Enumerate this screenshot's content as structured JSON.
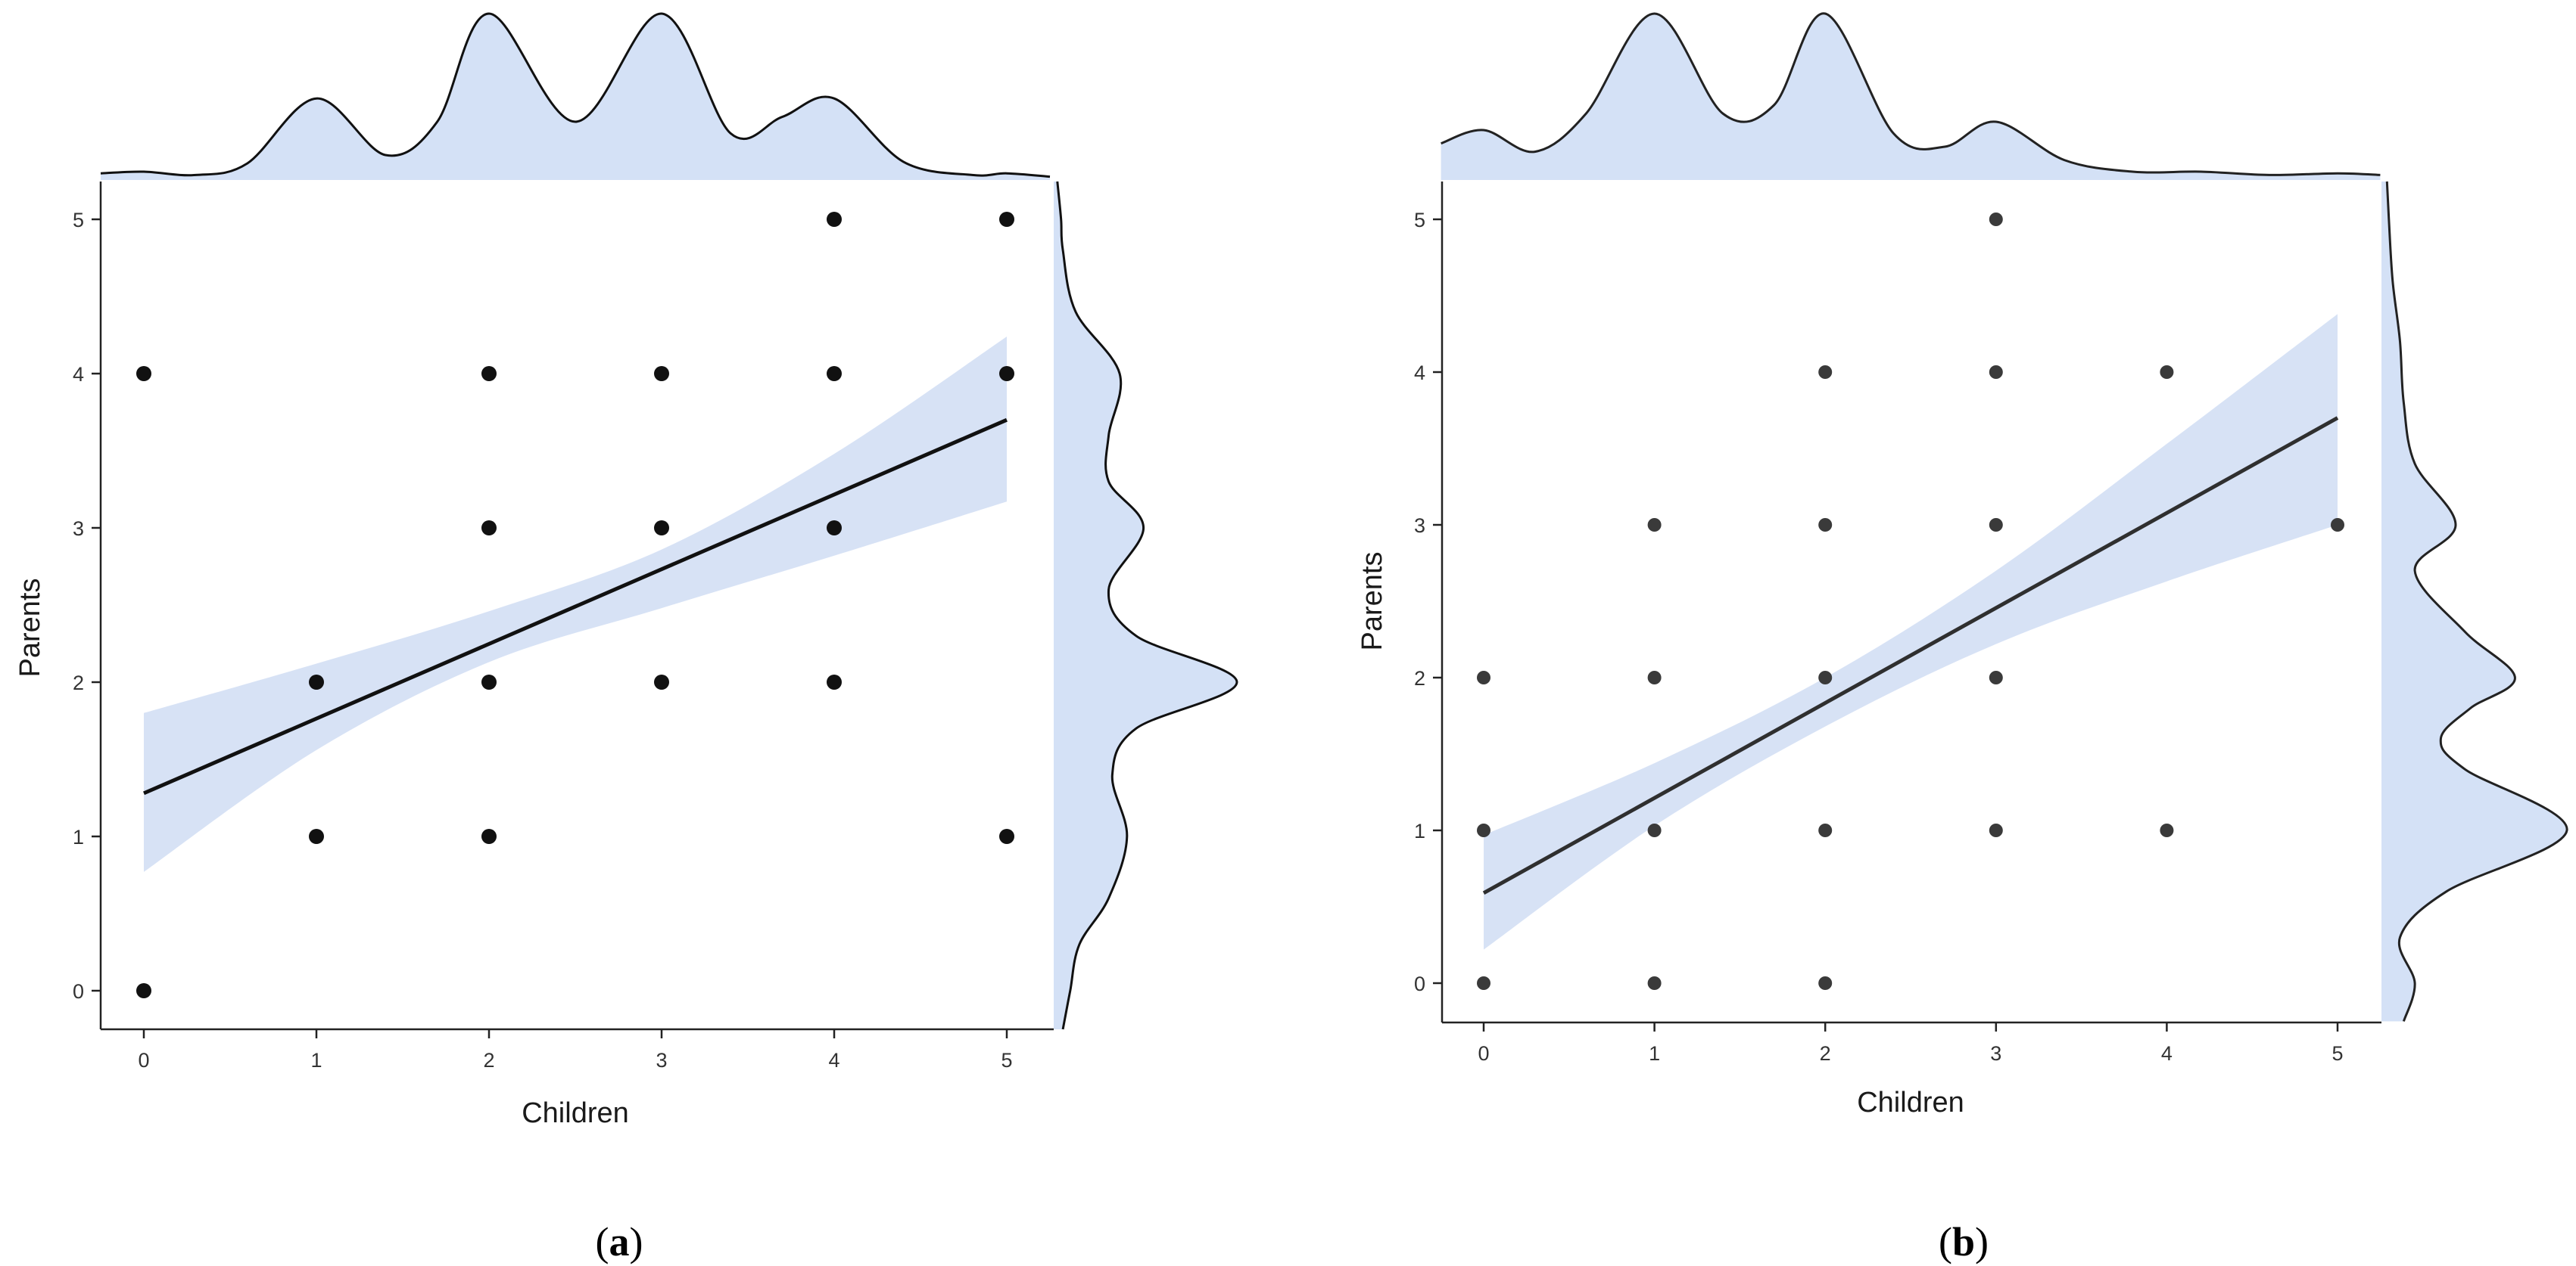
{
  "figure": {
    "panels": [
      {
        "label": "(a)",
        "label_letter": "a"
      },
      {
        "label": "(b)",
        "label_letter": "b"
      }
    ]
  },
  "chart_data": [
    {
      "type": "scatter",
      "panel": "a",
      "xlabel": "Children",
      "ylabel": "Parents",
      "xlim": [
        0,
        5
      ],
      "ylim": [
        0,
        5
      ],
      "x_ticks": [
        0,
        1,
        2,
        3,
        4,
        5
      ],
      "y_ticks": [
        0,
        1,
        2,
        3,
        4,
        5
      ],
      "grid": false,
      "point_color": "#111111",
      "points": [
        {
          "x": 0,
          "y": 0
        },
        {
          "x": 0,
          "y": 4
        },
        {
          "x": 1,
          "y": 1
        },
        {
          "x": 1,
          "y": 2
        },
        {
          "x": 2,
          "y": 1
        },
        {
          "x": 2,
          "y": 2
        },
        {
          "x": 2,
          "y": 3
        },
        {
          "x": 2,
          "y": 4
        },
        {
          "x": 3,
          "y": 2
        },
        {
          "x": 3,
          "y": 3
        },
        {
          "x": 3,
          "y": 4
        },
        {
          "x": 4,
          "y": 2
        },
        {
          "x": 4,
          "y": 3
        },
        {
          "x": 4,
          "y": 4
        },
        {
          "x": 4,
          "y": 5
        },
        {
          "x": 5,
          "y": 1
        },
        {
          "x": 5,
          "y": 4
        },
        {
          "x": 5,
          "y": 5
        }
      ],
      "regression": {
        "intercept": 1.28,
        "slope": 0.484,
        "line_color": "#111111"
      },
      "confidence_band": {
        "color": "#c9d8f2",
        "x": [
          0,
          1,
          2,
          3,
          4,
          5
        ],
        "lower": [
          0.77,
          1.56,
          2.13,
          2.48,
          2.82,
          3.17
        ],
        "upper": [
          1.8,
          2.12,
          2.46,
          2.86,
          3.48,
          4.24
        ]
      },
      "marginal_x_density": {
        "x": [
          -0.25,
          0,
          0.3,
          0.6,
          1.0,
          1.4,
          1.7,
          2.0,
          2.5,
          3.0,
          3.4,
          3.7,
          4.0,
          4.4,
          4.8,
          5.0,
          5.25
        ],
        "density": [
          0.04,
          0.05,
          0.03,
          0.1,
          0.49,
          0.15,
          0.35,
          1.0,
          0.35,
          1.0,
          0.28,
          0.38,
          0.49,
          0.11,
          0.03,
          0.04,
          0.02
        ],
        "fill": "#d4e1f6"
      },
      "marginal_y_density": {
        "y": [
          -0.25,
          0,
          0.3,
          0.6,
          1.0,
          1.4,
          1.7,
          2.0,
          2.3,
          2.6,
          3.0,
          3.3,
          3.6,
          4.0,
          4.4,
          4.8,
          5.0,
          5.25
        ],
        "density": [
          0.05,
          0.09,
          0.14,
          0.3,
          0.4,
          0.32,
          0.45,
          1.0,
          0.45,
          0.3,
          0.49,
          0.3,
          0.3,
          0.36,
          0.12,
          0.05,
          0.04,
          0.02
        ],
        "fill": "#d4e1f6"
      }
    },
    {
      "type": "scatter",
      "panel": "b",
      "xlabel": "Children",
      "ylabel": "Parents",
      "xlim": [
        0,
        5
      ],
      "ylim": [
        0,
        5
      ],
      "x_ticks": [
        0,
        1,
        2,
        3,
        4,
        5
      ],
      "y_ticks": [
        0,
        1,
        2,
        3,
        4,
        5
      ],
      "grid": false,
      "point_color": "#3a3a3a",
      "points": [
        {
          "x": 0,
          "y": 0
        },
        {
          "x": 0,
          "y": 1
        },
        {
          "x": 0,
          "y": 2
        },
        {
          "x": 1,
          "y": 0
        },
        {
          "x": 1,
          "y": 1
        },
        {
          "x": 1,
          "y": 2
        },
        {
          "x": 1,
          "y": 3
        },
        {
          "x": 2,
          "y": 0
        },
        {
          "x": 2,
          "y": 1
        },
        {
          "x": 2,
          "y": 2
        },
        {
          "x": 2,
          "y": 3
        },
        {
          "x": 2,
          "y": 4
        },
        {
          "x": 3,
          "y": 1
        },
        {
          "x": 3,
          "y": 2
        },
        {
          "x": 3,
          "y": 3
        },
        {
          "x": 3,
          "y": 4
        },
        {
          "x": 3,
          "y": 5
        },
        {
          "x": 4,
          "y": 1
        },
        {
          "x": 4,
          "y": 4
        },
        {
          "x": 5,
          "y": 3
        }
      ],
      "regression": {
        "intercept": 0.59,
        "slope": 0.622,
        "line_color": "#2f2f2f"
      },
      "confidence_band": {
        "color": "#c9d8f2",
        "x": [
          0,
          1,
          2,
          3,
          4,
          5
        ],
        "lower": [
          0.22,
          1.03,
          1.68,
          2.22,
          2.63,
          3.0
        ],
        "upper": [
          0.97,
          1.44,
          2.0,
          2.7,
          3.53,
          4.38
        ]
      },
      "marginal_x_density": {
        "x": [
          -0.25,
          0,
          0.3,
          0.6,
          1.0,
          1.4,
          1.7,
          2.0,
          2.4,
          2.7,
          3.0,
          3.4,
          3.8,
          4.2,
          4.6,
          5.0,
          5.25
        ],
        "density": [
          0.22,
          0.3,
          0.17,
          0.4,
          1.0,
          0.4,
          0.45,
          1.0,
          0.28,
          0.2,
          0.35,
          0.12,
          0.05,
          0.05,
          0.03,
          0.04,
          0.03
        ],
        "fill": "#d4e1f6"
      },
      "marginal_y_density": {
        "y": [
          -0.25,
          0,
          0.3,
          0.6,
          1.0,
          1.4,
          1.6,
          1.8,
          2.0,
          2.3,
          2.7,
          3.0,
          3.4,
          3.8,
          4.2,
          4.6,
          5.0,
          5.25
        ],
        "density": [
          0.12,
          0.18,
          0.1,
          0.35,
          1.0,
          0.45,
          0.32,
          0.48,
          0.72,
          0.45,
          0.18,
          0.4,
          0.18,
          0.12,
          0.1,
          0.06,
          0.04,
          0.03
        ],
        "fill": "#d4e1f6"
      }
    }
  ]
}
